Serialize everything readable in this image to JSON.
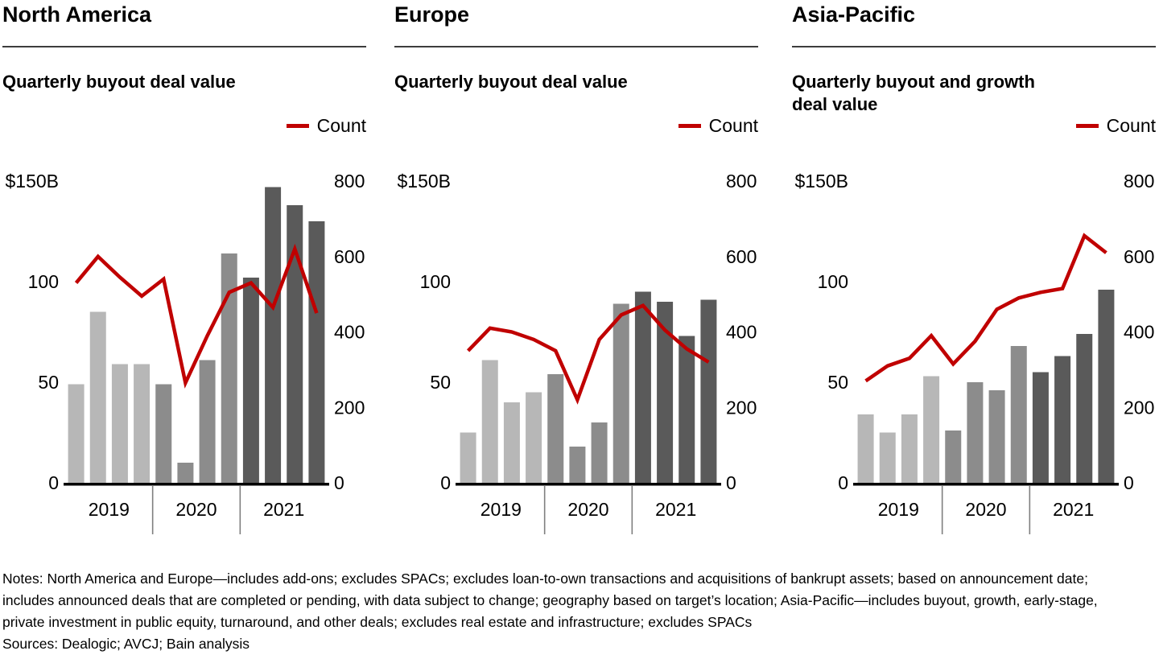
{
  "notes": "Notes: North America and Europe—includes add-ons; excludes SPACs; excludes loan-to-own transactions and acquisitions of bankrupt assets; based on announcement date; includes announced deals that are completed or pending, with data subject to change; geography based on target’s location; Asia-Pacific—includes buyout, growth, early-stage, private investment in public equity, turnaround, and other deals; excludes real estate and infrastructure; excludes SPACs",
  "sources": "Sources: Dealogic; AVCJ; Bain analysis",
  "colors": {
    "bar_2019": "#b7b7b7",
    "bar_2020": "#8c8c8c",
    "bar_2021": "#5a5a5a",
    "count_line": "#c00000",
    "axis_line": "#000000",
    "year_separator": "#7f7f7f"
  },
  "chart_data": [
    {
      "type": "bar+line",
      "title": "North America",
      "subtitle": "Quarterly buyout deal value",
      "legend_label": "Count",
      "x_year_groups": [
        "2019",
        "2020",
        "2021"
      ],
      "left_axis": {
        "range": [
          0,
          150
        ],
        "ticks": [
          {
            "value": 150,
            "label": "$150B"
          },
          {
            "value": 100,
            "label": "100"
          },
          {
            "value": 50,
            "label": "50"
          },
          {
            "value": 0,
            "label": "0"
          }
        ]
      },
      "right_axis": {
        "range": [
          0,
          800
        ],
        "ticks": [
          {
            "value": 800,
            "label": "800"
          },
          {
            "value": 600,
            "label": "600"
          },
          {
            "value": 400,
            "label": "400"
          },
          {
            "value": 200,
            "label": "200"
          },
          {
            "value": 0,
            "label": "0"
          }
        ]
      },
      "bars_usd_billion": [
        49,
        85,
        59,
        59,
        49,
        10,
        61,
        114,
        102,
        147,
        138,
        130
      ],
      "line_count": [
        530,
        600,
        545,
        495,
        540,
        265,
        390,
        505,
        530,
        465,
        620,
        450
      ]
    },
    {
      "type": "bar+line",
      "title": "Europe",
      "subtitle": "Quarterly buyout deal value",
      "legend_label": "Count",
      "x_year_groups": [
        "2019",
        "2020",
        "2021"
      ],
      "left_axis": {
        "range": [
          0,
          150
        ],
        "ticks": [
          {
            "value": 150,
            "label": "$150B"
          },
          {
            "value": 100,
            "label": "100"
          },
          {
            "value": 50,
            "label": "50"
          },
          {
            "value": 0,
            "label": "0"
          }
        ]
      },
      "right_axis": {
        "range": [
          0,
          800
        ],
        "ticks": [
          {
            "value": 800,
            "label": "800"
          },
          {
            "value": 600,
            "label": "600"
          },
          {
            "value": 400,
            "label": "400"
          },
          {
            "value": 200,
            "label": "200"
          },
          {
            "value": 0,
            "label": "0"
          }
        ]
      },
      "bars_usd_billion": [
        25,
        61,
        40,
        45,
        54,
        18,
        30,
        89,
        95,
        90,
        73,
        91
      ],
      "line_count": [
        350,
        410,
        400,
        380,
        350,
        220,
        380,
        445,
        470,
        405,
        355,
        320
      ]
    },
    {
      "type": "bar+line",
      "title": "Asia-Pacific",
      "subtitle": "Quarterly buyout and growth deal value",
      "legend_label": "Count",
      "x_year_groups": [
        "2019",
        "2020",
        "2021"
      ],
      "left_axis": {
        "range": [
          0,
          150
        ],
        "ticks": [
          {
            "value": 150,
            "label": "$150B"
          },
          {
            "value": 100,
            "label": "100"
          },
          {
            "value": 50,
            "label": "50"
          },
          {
            "value": 0,
            "label": "0"
          }
        ]
      },
      "right_axis": {
        "range": [
          0,
          800
        ],
        "ticks": [
          {
            "value": 800,
            "label": "800"
          },
          {
            "value": 600,
            "label": "600"
          },
          {
            "value": 400,
            "label": "400"
          },
          {
            "value": 200,
            "label": "200"
          },
          {
            "value": 0,
            "label": "0"
          }
        ]
      },
      "bars_usd_billion": [
        34,
        25,
        34,
        53,
        26,
        50,
        46,
        68,
        55,
        63,
        74,
        96
      ],
      "line_count": [
        270,
        310,
        330,
        390,
        315,
        375,
        460,
        490,
        505,
        515,
        655,
        610
      ]
    }
  ]
}
